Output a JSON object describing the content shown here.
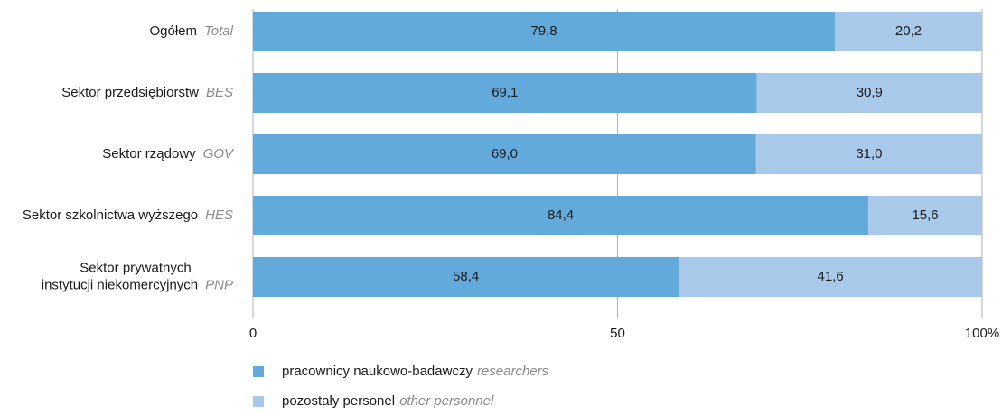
{
  "chart_data": {
    "type": "stacked-barh",
    "categories": [
      [
        "Ogółem"
      ],
      [
        "Sektor przedsiębiorstw"
      ],
      [
        "Sektor rządowy"
      ],
      [
        "Sektor szkolnictwa wyższego"
      ],
      [
        "Sektor prywatnych",
        "instytucji niekomercyjnych"
      ]
    ],
    "category_codes": [
      "Total",
      "BES",
      "GOV",
      "HES",
      "PNP"
    ],
    "series": [
      {
        "name": "pracownicy naukowo-badawczy",
        "name_en": "researchers",
        "color": "#63aadc",
        "values": [
          79.8,
          69.1,
          69.0,
          84.4,
          58.4
        ],
        "value_labels": [
          "79,8",
          "69,1",
          "69,0",
          "84,4",
          "58,4"
        ]
      },
      {
        "name": "pozostały personel",
        "name_en": "other personnel",
        "color": "#a8c9ea",
        "values": [
          20.2,
          30.9,
          31.0,
          15.6,
          41.6
        ],
        "value_labels": [
          "20,2",
          "30,9",
          "31,0",
          "15,6",
          "41,6"
        ]
      }
    ],
    "xlim": [
      0,
      100
    ],
    "xticks": [
      0,
      50,
      {
        "value": 100,
        "label": "100%"
      }
    ],
    "grid": true
  }
}
